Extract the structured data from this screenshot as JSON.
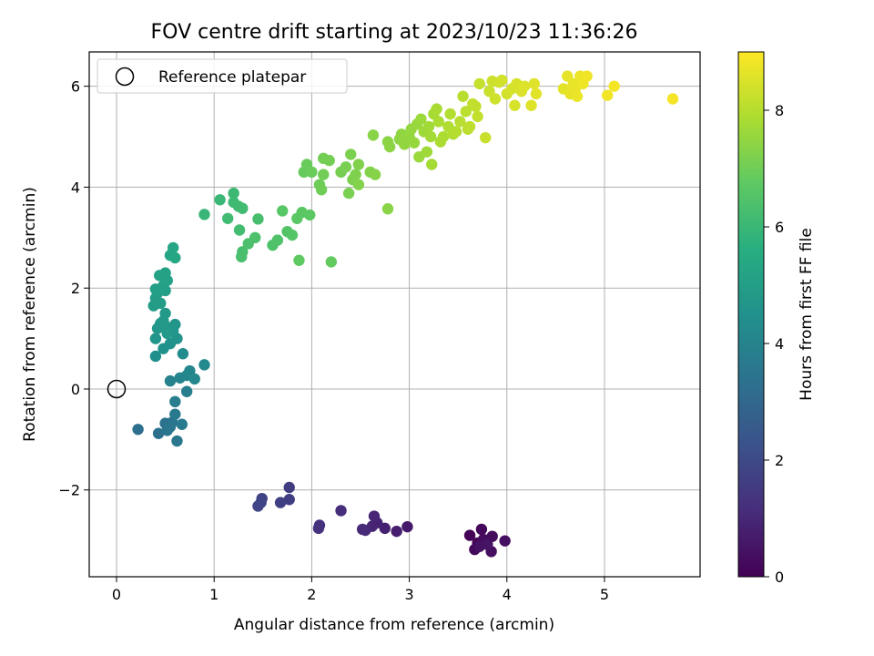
{
  "chart_data": {
    "type": "scatter",
    "title": "FOV centre drift starting at 2023/10/23 11:36:26",
    "xlabel": "Angular distance from reference (arcmin)",
    "ylabel": "Rotation from reference (arcmin)",
    "xlim": [
      -0.28,
      5.98
    ],
    "ylim": [
      -3.72,
      6.68
    ],
    "xticks": [
      0,
      1,
      2,
      3,
      4,
      5
    ],
    "xtick_labels": [
      "0",
      "1",
      "2",
      "3",
      "4",
      "5"
    ],
    "yticks": [
      -2,
      0,
      2,
      4,
      6
    ],
    "ytick_labels": [
      "−2",
      "0",
      "2",
      "4",
      "6"
    ],
    "grid": true,
    "legend": {
      "position": "top-left",
      "entries": [
        "Reference platepar"
      ]
    },
    "reference_point": {
      "x": 0,
      "y": 0,
      "label": "Reference platepar"
    },
    "colorbar": {
      "label": "Hours from first FF file",
      "colormap": "viridis",
      "range": [
        0,
        9
      ],
      "ticks": [
        0,
        2,
        4,
        6,
        8
      ],
      "tick_labels": [
        "0",
        "2",
        "4",
        "6",
        "8"
      ]
    },
    "points": [
      [
        3.62,
        -2.9,
        0.05
      ],
      [
        3.7,
        -3.05,
        0.1
      ],
      [
        3.74,
        -2.78,
        0.15
      ],
      [
        3.67,
        -3.18,
        0.2
      ],
      [
        3.76,
        -2.98,
        0.25
      ],
      [
        3.85,
        -2.92,
        0.3
      ],
      [
        3.84,
        -3.22,
        0.35
      ],
      [
        3.98,
        -3.01,
        0.4
      ],
      [
        3.72,
        -3.12,
        0.45
      ],
      [
        3.8,
        -3.08,
        0.5
      ],
      [
        2.98,
        -2.73,
        0.65
      ],
      [
        2.87,
        -2.82,
        0.75
      ],
      [
        2.75,
        -2.76,
        0.85
      ],
      [
        2.67,
        -2.65,
        0.9
      ],
      [
        2.62,
        -2.72,
        0.95
      ],
      [
        2.64,
        -2.52,
        1.0
      ],
      [
        2.55,
        -2.8,
        1.05
      ],
      [
        2.52,
        -2.78,
        1.1
      ],
      [
        2.3,
        -2.41,
        1.2
      ],
      [
        2.08,
        -2.7,
        1.3
      ],
      [
        2.07,
        -2.76,
        1.35
      ],
      [
        1.77,
        -1.95,
        1.6
      ],
      [
        1.77,
        -2.19,
        1.65
      ],
      [
        1.68,
        -2.25,
        1.7
      ],
      [
        1.49,
        -2.17,
        1.8
      ],
      [
        1.48,
        -2.25,
        1.85
      ],
      [
        1.45,
        -2.32,
        1.9
      ],
      [
        0.22,
        -0.8,
        3.3
      ],
      [
        0.43,
        -0.88,
        3.35
      ],
      [
        0.5,
        -0.68,
        3.4
      ],
      [
        0.57,
        -0.66,
        3.45
      ],
      [
        0.52,
        -0.82,
        3.5
      ],
      [
        0.55,
        -0.75,
        3.55
      ],
      [
        0.62,
        -1.03,
        3.6
      ],
      [
        0.6,
        -0.5,
        3.65
      ],
      [
        0.67,
        -0.7,
        3.7
      ],
      [
        0.6,
        -0.25,
        3.8
      ],
      [
        0.72,
        -0.05,
        3.85
      ],
      [
        0.55,
        0.16,
        4.0
      ],
      [
        0.65,
        0.22,
        4.05
      ],
      [
        0.72,
        0.27,
        4.1
      ],
      [
        0.75,
        0.36,
        4.15
      ],
      [
        0.8,
        0.2,
        4.2
      ],
      [
        0.9,
        0.48,
        4.25
      ],
      [
        0.68,
        0.7,
        4.35
      ],
      [
        0.4,
        0.65,
        4.5
      ],
      [
        0.48,
        0.8,
        4.55
      ],
      [
        0.55,
        0.9,
        4.6
      ],
      [
        0.62,
        1.0,
        4.65
      ],
      [
        0.6,
        1.28,
        4.7
      ],
      [
        0.58,
        1.15,
        4.72
      ],
      [
        0.4,
        1.0,
        4.75
      ],
      [
        0.42,
        1.2,
        4.78
      ],
      [
        0.45,
        1.3,
        4.8
      ],
      [
        0.5,
        1.25,
        4.82
      ],
      [
        0.52,
        1.1,
        4.85
      ],
      [
        0.48,
        1.35,
        4.88
      ],
      [
        0.5,
        1.5,
        4.9
      ],
      [
        0.38,
        1.65,
        4.95
      ],
      [
        0.4,
        1.8,
        5.0
      ],
      [
        0.45,
        1.7,
        5.02
      ],
      [
        0.42,
        1.9,
        5.05
      ],
      [
        0.5,
        1.95,
        5.08
      ],
      [
        0.4,
        1.98,
        5.1
      ],
      [
        0.48,
        2.05,
        5.12
      ],
      [
        0.52,
        2.15,
        5.15
      ],
      [
        0.44,
        2.25,
        5.18
      ],
      [
        0.5,
        2.3,
        5.2
      ],
      [
        0.55,
        2.65,
        5.3
      ],
      [
        0.58,
        2.8,
        5.35
      ],
      [
        0.6,
        2.6,
        5.4
      ],
      [
        0.9,
        3.46,
        6.0
      ],
      [
        1.06,
        3.75,
        6.05
      ],
      [
        1.2,
        3.88,
        6.1
      ],
      [
        1.2,
        3.7,
        6.12
      ],
      [
        1.25,
        3.62,
        6.15
      ],
      [
        1.29,
        3.58,
        6.18
      ],
      [
        1.14,
        3.38,
        6.2
      ],
      [
        1.26,
        3.15,
        6.25
      ],
      [
        1.45,
        3.37,
        6.3
      ],
      [
        1.29,
        2.72,
        6.35
      ],
      [
        1.28,
        2.62,
        6.38
      ],
      [
        1.35,
        2.88,
        6.4
      ],
      [
        1.42,
        3.0,
        6.42
      ],
      [
        1.6,
        2.85,
        6.45
      ],
      [
        1.65,
        2.95,
        6.5
      ],
      [
        1.75,
        3.12,
        6.55
      ],
      [
        1.8,
        3.05,
        6.6
      ],
      [
        1.7,
        3.53,
        6.65
      ],
      [
        1.85,
        3.38,
        6.7
      ],
      [
        1.9,
        3.5,
        6.72
      ],
      [
        1.98,
        3.45,
        6.75
      ],
      [
        1.87,
        2.55,
        6.8
      ],
      [
        2.2,
        2.52,
        6.85
      ],
      [
        1.92,
        4.3,
        6.9
      ],
      [
        1.95,
        4.45,
        6.92
      ],
      [
        2.0,
        4.3,
        6.95
      ],
      [
        2.08,
        4.05,
        7.0
      ],
      [
        2.1,
        3.95,
        7.02
      ],
      [
        2.12,
        4.25,
        7.05
      ],
      [
        2.12,
        4.57,
        7.08
      ],
      [
        2.18,
        4.53,
        7.1
      ],
      [
        2.3,
        4.3,
        7.12
      ],
      [
        2.35,
        4.4,
        7.15
      ],
      [
        2.38,
        3.88,
        7.18
      ],
      [
        2.4,
        4.65,
        7.2
      ],
      [
        2.42,
        4.15,
        7.22
      ],
      [
        2.45,
        4.25,
        7.25
      ],
      [
        2.48,
        4.45,
        7.28
      ],
      [
        2.48,
        4.05,
        7.3
      ],
      [
        2.6,
        4.3,
        7.32
      ],
      [
        2.65,
        4.25,
        7.35
      ],
      [
        2.63,
        5.03,
        7.38
      ],
      [
        2.78,
        3.57,
        7.4
      ],
      [
        2.78,
        4.9,
        7.42
      ],
      [
        2.8,
        4.8,
        7.45
      ],
      [
        2.9,
        4.95,
        7.48
      ],
      [
        2.92,
        5.05,
        7.5
      ],
      [
        2.95,
        4.85,
        7.52
      ],
      [
        3.0,
        5.0,
        7.55
      ],
      [
        3.02,
        5.15,
        7.58
      ],
      [
        3.05,
        4.88,
        7.6
      ],
      [
        3.08,
        5.25,
        7.62
      ],
      [
        3.1,
        4.6,
        7.65
      ],
      [
        3.12,
        5.35,
        7.68
      ],
      [
        3.15,
        5.1,
        7.7
      ],
      [
        3.18,
        4.7,
        7.72
      ],
      [
        3.2,
        5.2,
        7.75
      ],
      [
        3.22,
        5.0,
        7.78
      ],
      [
        3.23,
        4.45,
        7.8
      ],
      [
        3.25,
        5.45,
        7.82
      ],
      [
        3.28,
        5.55,
        7.85
      ],
      [
        3.3,
        5.3,
        7.88
      ],
      [
        3.32,
        4.9,
        7.9
      ],
      [
        3.35,
        5.0,
        7.92
      ],
      [
        3.4,
        5.2,
        7.95
      ],
      [
        3.42,
        5.45,
        7.98
      ],
      [
        3.45,
        5.05,
        8.0
      ],
      [
        3.48,
        5.1,
        8.02
      ],
      [
        3.52,
        5.3,
        8.05
      ],
      [
        3.55,
        5.8,
        8.08
      ],
      [
        3.58,
        5.5,
        8.1
      ],
      [
        3.6,
        5.15,
        8.12
      ],
      [
        3.62,
        5.2,
        8.15
      ],
      [
        3.65,
        5.65,
        8.18
      ],
      [
        3.68,
        5.6,
        8.2
      ],
      [
        3.7,
        5.4,
        8.22
      ],
      [
        3.72,
        6.05,
        8.25
      ],
      [
        3.78,
        4.98,
        8.28
      ],
      [
        3.82,
        5.9,
        8.3
      ],
      [
        3.85,
        6.1,
        8.32
      ],
      [
        3.88,
        5.75,
        8.35
      ],
      [
        3.92,
        6.08,
        8.38
      ],
      [
        3.95,
        6.12,
        8.4
      ],
      [
        4.0,
        5.85,
        8.42
      ],
      [
        4.05,
        5.95,
        8.45
      ],
      [
        4.08,
        5.62,
        8.48
      ],
      [
        4.1,
        6.05,
        8.5
      ],
      [
        4.15,
        5.9,
        8.52
      ],
      [
        4.18,
        6.0,
        8.55
      ],
      [
        4.25,
        5.62,
        8.58
      ],
      [
        4.28,
        6.05,
        8.6
      ],
      [
        4.3,
        5.85,
        8.62
      ],
      [
        4.58,
        5.95,
        8.65
      ],
      [
        4.62,
        6.2,
        8.68
      ],
      [
        4.65,
        5.85,
        8.7
      ],
      [
        4.68,
        6.05,
        8.72
      ],
      [
        4.7,
        5.95,
        8.74
      ],
      [
        4.72,
        5.8,
        8.76
      ],
      [
        4.75,
        6.2,
        8.78
      ],
      [
        4.78,
        6.05,
        8.8
      ],
      [
        4.82,
        6.2,
        8.82
      ],
      [
        5.03,
        5.82,
        8.84
      ],
      [
        5.1,
        6.0,
        8.86
      ],
      [
        5.7,
        5.75,
        8.88
      ]
    ]
  }
}
